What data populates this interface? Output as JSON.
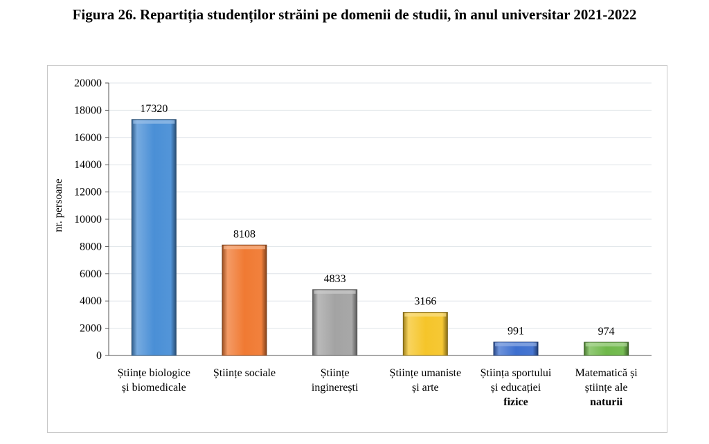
{
  "figure": {
    "title": "Figura 26. Repartiția studenților străini pe domenii de studii, în anul universitar 2021-2022"
  },
  "chart_data": {
    "type": "bar",
    "title": "",
    "xlabel": "",
    "ylabel": "nr. persoane",
    "ylim": [
      0,
      20000
    ],
    "yticks": [
      0,
      2000,
      4000,
      6000,
      8000,
      10000,
      12000,
      14000,
      16000,
      18000,
      20000
    ],
    "grid": true,
    "legend": "none",
    "categories": [
      [
        "Științe biologice",
        "și biomedicale"
      ],
      [
        "Științe sociale"
      ],
      [
        "Științe",
        "inginerești"
      ],
      [
        "Științe umaniste",
        "și arte"
      ],
      [
        "Știința sportului",
        "și educației",
        "fizice"
      ],
      [
        "Matematică și",
        "științe ale",
        "naturii"
      ]
    ],
    "values": [
      17320,
      8108,
      4833,
      3166,
      991,
      974
    ],
    "data_labels": [
      "17320",
      "8108",
      "4833",
      "3166",
      "991",
      "974"
    ],
    "colors": [
      "#4a8fd6",
      "#f07a33",
      "#a3a3a3",
      "#f5c52a",
      "#3d6fcf",
      "#6fb84a"
    ]
  }
}
